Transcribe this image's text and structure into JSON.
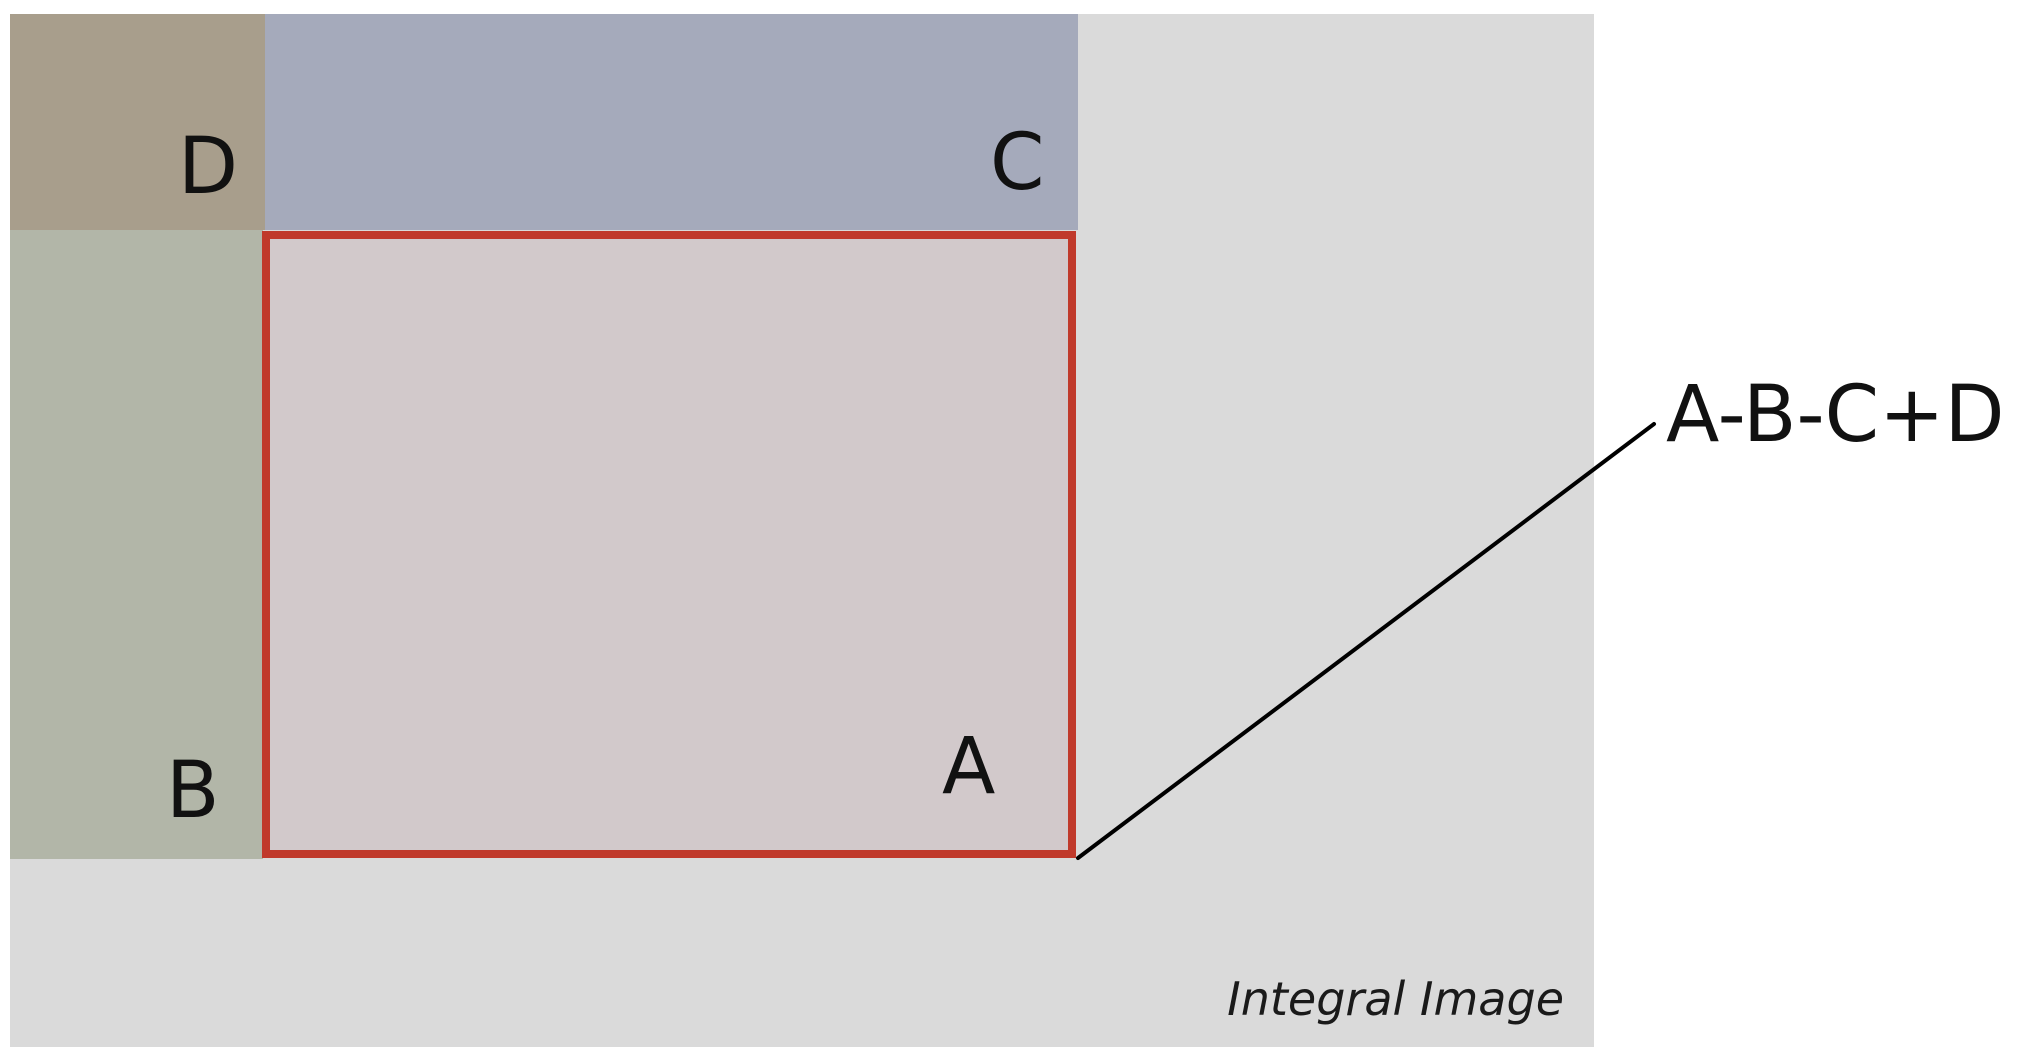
{
  "diagram": {
    "caption": "Integral Image",
    "formula": "A-B-C+D",
    "regions": {
      "d": {
        "label": "D",
        "color": "#a89e8c"
      },
      "c": {
        "label": "C",
        "color": "#a5aabb"
      },
      "b": {
        "label": "B",
        "color": "#b2b6a8"
      },
      "a": {
        "label": "A",
        "fill": "#d2c9cb",
        "border": "#c0392b"
      }
    },
    "colors": {
      "panel_background": "#dadada",
      "page_background": "#ffffff",
      "leader_line": "#000000"
    }
  }
}
